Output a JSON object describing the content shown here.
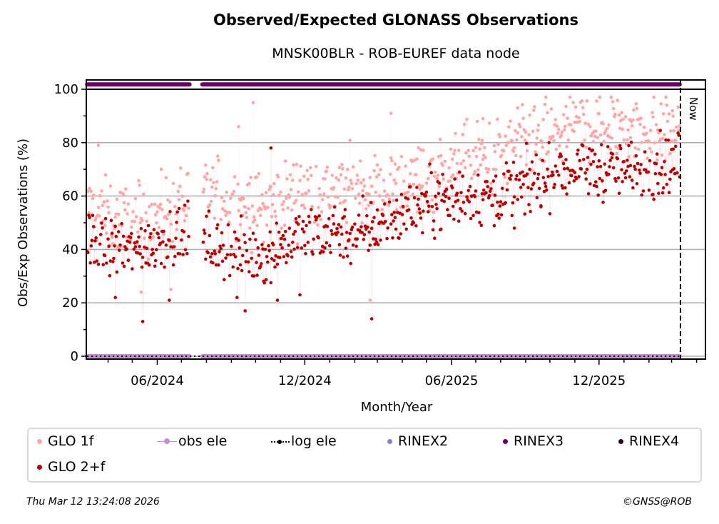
{
  "chart_data": {
    "type": "scatter",
    "title": "Observed/Expected GLONASS Observations",
    "subtitle": "MNSK00BLR - ROB-EUREF data node",
    "xlabel": "Month/Year",
    "ylabel": "Obs/Exp Observations (%)",
    "xlim": [
      "2024-03-05",
      "2026-04-12"
    ],
    "ylim": [
      -1,
      104
    ],
    "x_ticks": [
      {
        "date": "2024-06-01",
        "label": "06/2024"
      },
      {
        "date": "2024-12-01",
        "label": "12/2024"
      },
      {
        "date": "2025-06-01",
        "label": "06/2025"
      },
      {
        "date": "2025-12-01",
        "label": "12/2025"
      }
    ],
    "y_ticks": [
      0,
      20,
      40,
      60,
      80,
      100
    ],
    "grid": "y-major",
    "now_marker": {
      "date": "2026-03-12",
      "label": "Now"
    },
    "series": [
      {
        "name": "GLO 1f",
        "color": "#ffa5a5",
        "start": "2024-03-06",
        "end": "2026-03-11",
        "gaps": [
          [
            "2024-07-11",
            "2024-07-27"
          ]
        ],
        "trend_monthly": [
          55,
          52,
          50,
          54,
          58,
          60,
          58,
          55,
          60,
          63,
          62,
          64,
          62,
          66,
          68,
          72,
          74,
          76,
          79,
          83,
          86,
          87,
          86,
          85,
          86
        ],
        "spread": 12,
        "outliers": [
          {
            "date": "2024-03-20",
            "value": 79
          },
          {
            "date": "2024-05-12",
            "value": 24
          },
          {
            "date": "2024-06-18",
            "value": 25
          },
          {
            "date": "2024-09-28",
            "value": 95
          },
          {
            "date": "2024-09-10",
            "value": 86
          },
          {
            "date": "2025-02-20",
            "value": 21
          },
          {
            "date": "2025-03-18",
            "value": 91
          },
          {
            "date": "2025-07-10",
            "value": 89
          },
          {
            "date": "2025-08-22",
            "value": 93
          }
        ]
      },
      {
        "name": "GLO 2+f",
        "color": "#bb0000",
        "start": "2024-03-06",
        "end": "2026-03-11",
        "gaps": [
          [
            "2024-07-11",
            "2024-07-27"
          ]
        ],
        "trend_monthly": [
          42,
          40,
          40,
          44,
          46,
          42,
          38,
          38,
          42,
          45,
          48,
          45,
          50,
          55,
          58,
          60,
          60,
          62,
          64,
          69,
          70,
          70,
          70,
          71,
          72
        ],
        "spread": 10,
        "outliers": [
          {
            "date": "2024-05-14",
            "value": 13
          },
          {
            "date": "2024-04-10",
            "value": 22
          },
          {
            "date": "2024-06-16",
            "value": 21
          },
          {
            "date": "2024-09-08",
            "value": 22
          },
          {
            "date": "2024-09-18",
            "value": 17
          },
          {
            "date": "2024-10-28",
            "value": 21
          },
          {
            "date": "2024-11-25",
            "value": 23
          },
          {
            "date": "2025-02-22",
            "value": 14
          },
          {
            "date": "2024-10-20",
            "value": 78
          },
          {
            "date": "2025-09-20",
            "value": 56
          },
          {
            "date": "2025-08-18",
            "value": 48
          }
        ]
      }
    ],
    "availability": [
      {
        "name": "RINEX3",
        "color": "#6a0068",
        "value": 101.8,
        "start": "2024-03-06",
        "end": "2026-03-11",
        "gaps": [
          [
            "2024-07-11",
            "2024-07-27"
          ]
        ]
      },
      {
        "name": "obs ele",
        "color": "#c88fd0",
        "value": 0,
        "start": "2024-03-06",
        "end": "2026-03-11",
        "gaps": [
          [
            "2024-07-11",
            "2024-07-27"
          ]
        ]
      },
      {
        "name": "log ele",
        "color": "#000000",
        "value": 0,
        "style": "dotted",
        "start": "2024-03-06",
        "end": "2026-03-11"
      }
    ],
    "legend": {
      "placement": "bottom",
      "entries": [
        {
          "label": "GLO 1f",
          "color": "#ffa5a5",
          "marker": "dot"
        },
        {
          "label": "obs ele",
          "color": "#c88fd0",
          "marker": "line-dot"
        },
        {
          "label": "log ele",
          "color": "#000000",
          "marker": "dotted-line-dot"
        },
        {
          "label": "RINEX2",
          "color": "#8680c8",
          "marker": "dot"
        },
        {
          "label": "RINEX3",
          "color": "#6a0068",
          "marker": "dot"
        },
        {
          "label": "RINEX4",
          "color": "#2a0020",
          "marker": "dot"
        },
        {
          "label": "GLO 2+f",
          "color": "#bb0000",
          "marker": "dot"
        }
      ]
    }
  },
  "footer": {
    "timestamp": "Thu Mar 12 13:24:08 2026",
    "copyright": "©GNSS@ROB"
  }
}
